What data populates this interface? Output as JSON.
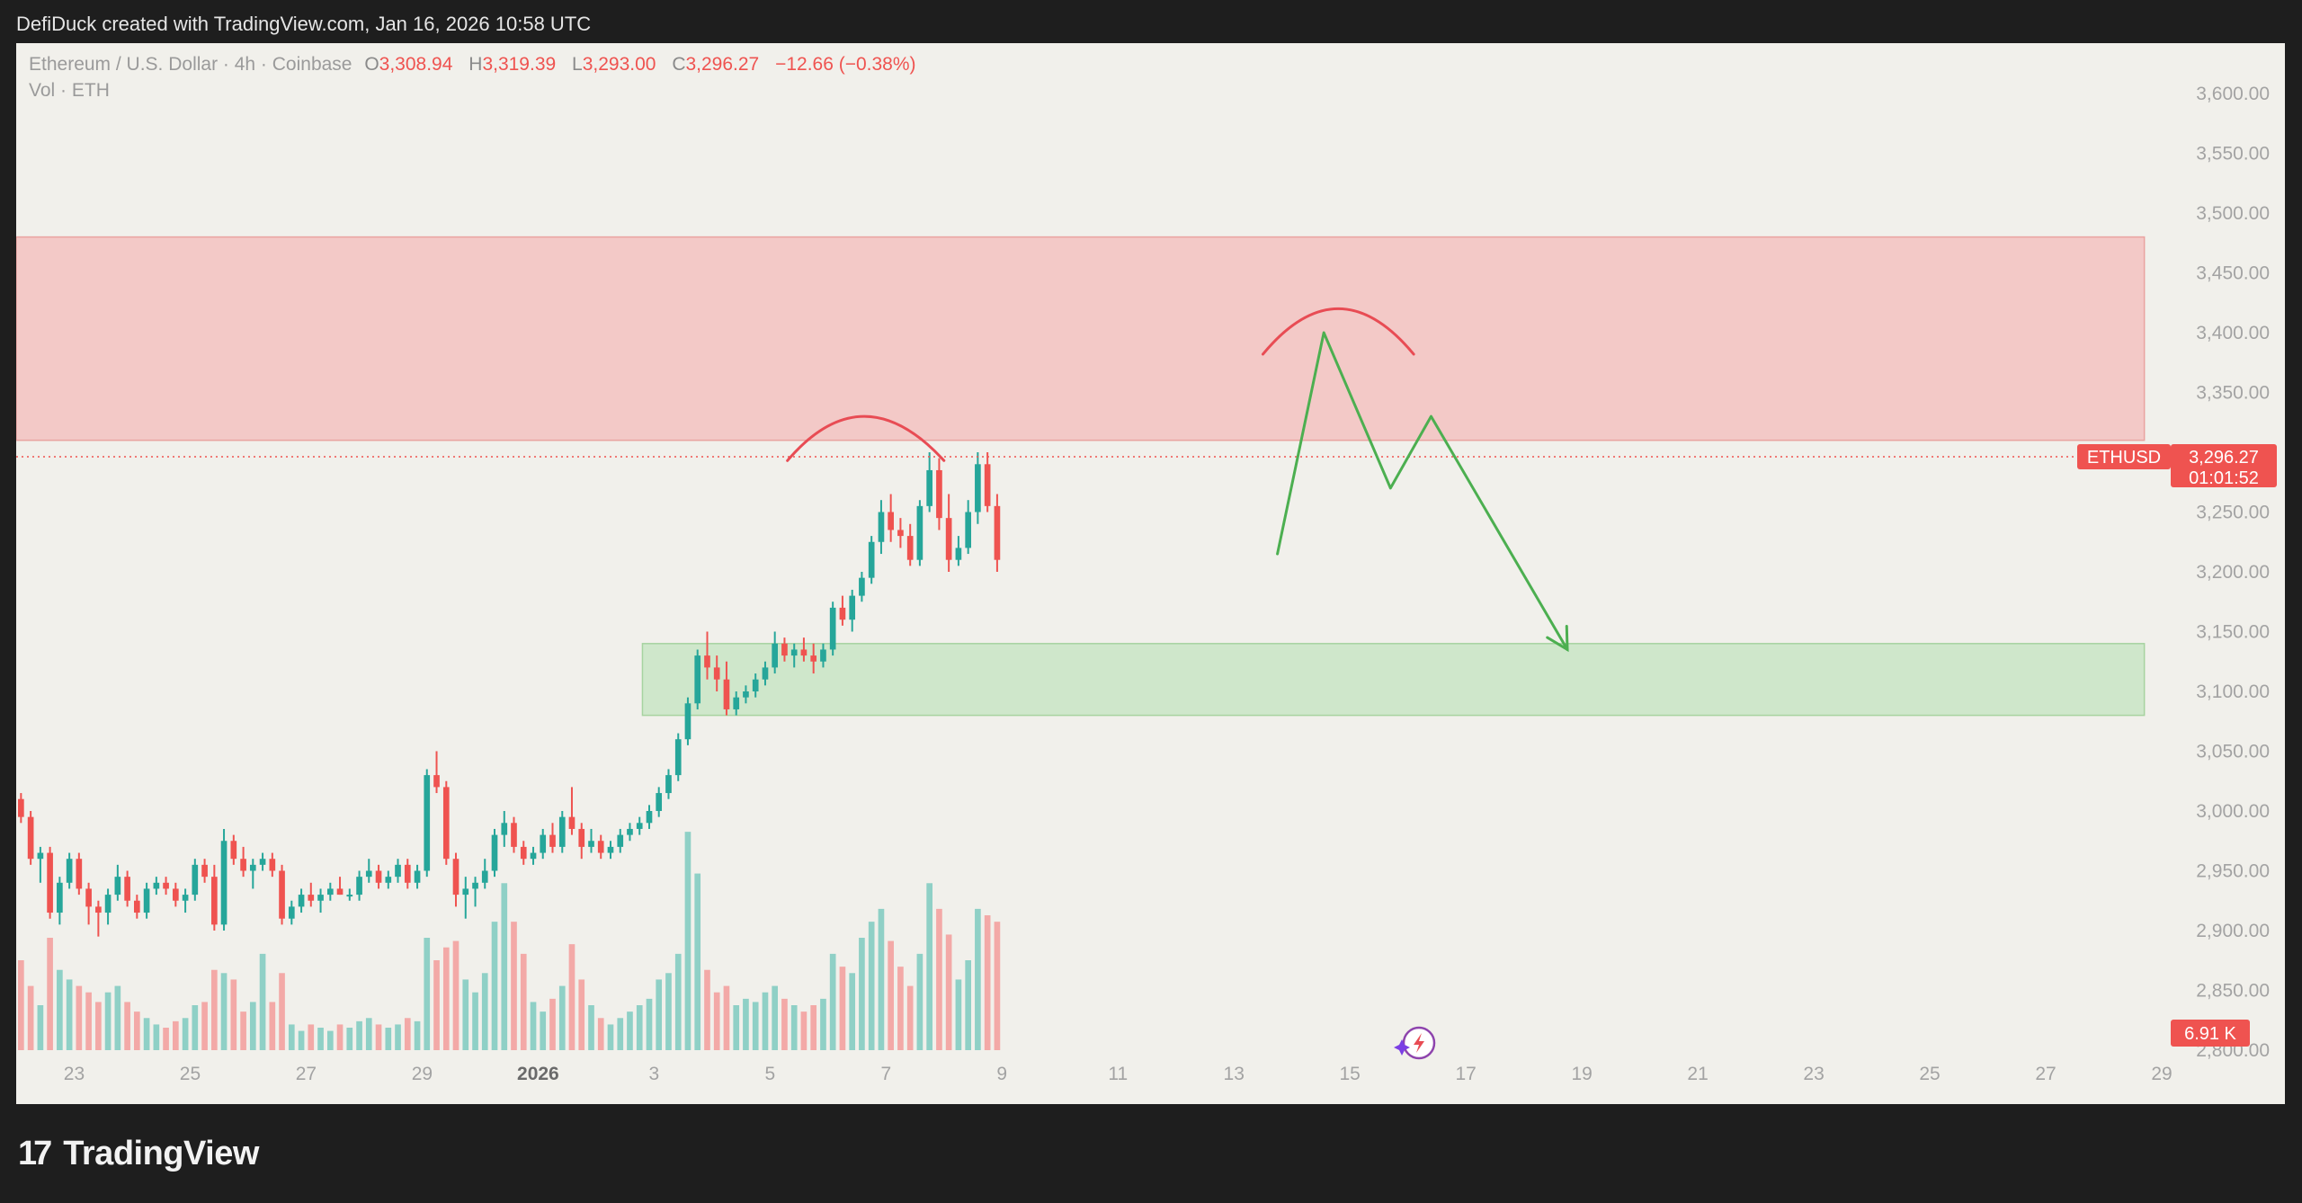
{
  "caption": "DefiDuck created with TradingView.com, Jan 16, 2026 10:58 UTC",
  "brand": {
    "logo": "17",
    "name": "TradingView"
  },
  "legend": {
    "symbol": "Ethereum / U.S. Dollar · 4h · Coinbase",
    "o_label": "O",
    "o_value": "3,308.94",
    "h_label": "H",
    "h_value": "3,319.39",
    "l_label": "L",
    "l_value": "3,293.00",
    "c_label": "C",
    "c_value": "3,296.27",
    "change": "−12.66 (−0.38%)",
    "volume_label": "Vol · ETH"
  },
  "colors": {
    "up": "#26a69a",
    "down": "#ef5350",
    "resistance_zone": "#f3c9c7",
    "support_zone": "#cfe7cb",
    "annotation_red": "#e84c54",
    "annotation_green": "#4caf50"
  },
  "icons": {
    "lightning_badge": "lightning-icon"
  },
  "chart_data": {
    "type": "candlestick",
    "symbol": "ETHUSD",
    "interval": "4h",
    "ylim": [
      2800,
      3600
    ],
    "y_ticks": [
      "2,800.00",
      "2,850.00",
      "2,900.00",
      "2,950.00",
      "3,000.00",
      "3,050.00",
      "3,100.00",
      "3,150.00",
      "3,200.00",
      "3,250.00",
      "3,300.00",
      "3,350.00",
      "3,400.00",
      "3,450.00",
      "3,500.00",
      "3,550.00",
      "3,600.00"
    ],
    "x_ticks": [
      {
        "day": 23.0,
        "label": "23"
      },
      {
        "day": 25.0,
        "label": "25"
      },
      {
        "day": 27.0,
        "label": "27"
      },
      {
        "day": 29.0,
        "label": "29"
      },
      {
        "day": 31.0,
        "label": "2026"
      },
      {
        "day": 33.0,
        "label": "3"
      },
      {
        "day": 35.0,
        "label": "5"
      },
      {
        "day": 37.0,
        "label": "7"
      },
      {
        "day": 39.0,
        "label": "9"
      },
      {
        "day": 41.0,
        "label": "11"
      },
      {
        "day": 43.0,
        "label": "13"
      },
      {
        "day": 45.0,
        "label": "15"
      },
      {
        "day": 47.0,
        "label": "17"
      },
      {
        "day": 49.0,
        "label": "19"
      },
      {
        "day": 51.0,
        "label": "21"
      },
      {
        "day": 53.0,
        "label": "23"
      },
      {
        "day": 55.0,
        "label": "25"
      },
      {
        "day": 57.0,
        "label": "27"
      },
      {
        "day": 59.0,
        "label": "29"
      }
    ],
    "last_price": {
      "ticker": "ETHUSD",
      "value": 3296.27,
      "label": "3,296.27",
      "countdown": "01:01:52"
    },
    "volume_badge": "6.91 K",
    "zones": [
      {
        "name": "resistance",
        "from_day": 22.0,
        "to_day": 58.7,
        "low": 3310,
        "high": 3480
      },
      {
        "name": "support",
        "from_day": 32.8,
        "to_day": 58.7,
        "low": 3080,
        "high": 3140
      }
    ],
    "annotations": {
      "arc_1": {
        "day_start": 35.3,
        "day_peak": 36.6,
        "day_end": 38.0,
        "low": 3293,
        "peak": 3330
      },
      "arc_2": {
        "day_start": 43.5,
        "day_peak": 44.8,
        "day_end": 46.1,
        "low": 3382,
        "peak": 3420
      },
      "projection_path": [
        {
          "day": 43.75,
          "price": 3215
        },
        {
          "day": 44.55,
          "price": 3400
        },
        {
          "day": 45.7,
          "price": 3270
        },
        {
          "day": 46.4,
          "price": 3330
        },
        {
          "day": 48.75,
          "price": 3135
        }
      ]
    },
    "candles": [
      [
        22.083,
        3010,
        3015,
        2990,
        2995,
        28
      ],
      [
        22.25,
        2995,
        3000,
        2955,
        2960,
        20
      ],
      [
        22.417,
        2960,
        2970,
        2940,
        2965,
        14
      ],
      [
        22.583,
        2965,
        2970,
        2910,
        2915,
        35
      ],
      [
        22.75,
        2915,
        2945,
        2905,
        2940,
        25
      ],
      [
        22.917,
        2940,
        2965,
        2935,
        2960,
        22
      ],
      [
        23.083,
        2960,
        2965,
        2930,
        2935,
        20
      ],
      [
        23.25,
        2935,
        2940,
        2905,
        2920,
        18
      ],
      [
        23.417,
        2920,
        2925,
        2895,
        2915,
        15
      ],
      [
        23.583,
        2915,
        2935,
        2905,
        2930,
        18
      ],
      [
        23.75,
        2930,
        2955,
        2925,
        2945,
        20
      ],
      [
        23.917,
        2945,
        2950,
        2920,
        2925,
        15
      ],
      [
        24.083,
        2925,
        2930,
        2910,
        2915,
        12
      ],
      [
        24.25,
        2915,
        2940,
        2910,
        2935,
        10
      ],
      [
        24.417,
        2935,
        2945,
        2930,
        2940,
        8
      ],
      [
        24.583,
        2940,
        2945,
        2930,
        2935,
        7
      ],
      [
        24.75,
        2935,
        2940,
        2920,
        2925,
        9
      ],
      [
        24.917,
        2925,
        2935,
        2915,
        2930,
        10
      ],
      [
        25.083,
        2930,
        2960,
        2925,
        2955,
        14
      ],
      [
        25.25,
        2955,
        2960,
        2940,
        2945,
        15
      ],
      [
        25.417,
        2945,
        2955,
        2900,
        2905,
        25
      ],
      [
        25.583,
        2905,
        2985,
        2900,
        2975,
        24
      ],
      [
        25.75,
        2975,
        2980,
        2955,
        2960,
        22
      ],
      [
        25.917,
        2960,
        2970,
        2945,
        2950,
        12
      ],
      [
        26.083,
        2950,
        2960,
        2935,
        2955,
        15
      ],
      [
        26.25,
        2955,
        2965,
        2950,
        2960,
        30
      ],
      [
        26.417,
        2960,
        2965,
        2945,
        2950,
        15
      ],
      [
        26.583,
        2950,
        2955,
        2905,
        2910,
        24
      ],
      [
        26.75,
        2910,
        2925,
        2905,
        2920,
        8
      ],
      [
        26.917,
        2920,
        2935,
        2915,
        2930,
        6
      ],
      [
        27.083,
        2930,
        2940,
        2920,
        2925,
        8
      ],
      [
        27.25,
        2925,
        2935,
        2915,
        2930,
        7
      ],
      [
        27.417,
        2930,
        2940,
        2925,
        2935,
        6
      ],
      [
        27.583,
        2935,
        2945,
        2930,
        2930,
        8
      ],
      [
        27.75,
        2930,
        2935,
        2925,
        2930,
        7
      ],
      [
        27.917,
        2930,
        2950,
        2925,
        2945,
        9
      ],
      [
        28.083,
        2945,
        2960,
        2940,
        2950,
        10
      ],
      [
        28.25,
        2950,
        2955,
        2935,
        2940,
        8
      ],
      [
        28.417,
        2940,
        2950,
        2935,
        2945,
        7
      ],
      [
        28.583,
        2945,
        2960,
        2940,
        2955,
        8
      ],
      [
        28.75,
        2955,
        2960,
        2935,
        2940,
        10
      ],
      [
        28.917,
        2940,
        2955,
        2935,
        2950,
        9
      ],
      [
        29.083,
        2950,
        3035,
        2945,
        3030,
        35
      ],
      [
        29.25,
        3030,
        3050,
        3015,
        3020,
        28
      ],
      [
        29.417,
        3020,
        3025,
        2955,
        2960,
        32
      ],
      [
        29.583,
        2960,
        2965,
        2920,
        2930,
        34
      ],
      [
        29.75,
        2930,
        2945,
        2910,
        2935,
        22
      ],
      [
        29.917,
        2935,
        2945,
        2920,
        2940,
        18
      ],
      [
        30.083,
        2940,
        2960,
        2935,
        2950,
        24
      ],
      [
        30.25,
        2950,
        2985,
        2945,
        2980,
        40
      ],
      [
        30.417,
        2980,
        3000,
        2970,
        2990,
        52
      ],
      [
        30.583,
        2990,
        2995,
        2965,
        2970,
        40
      ],
      [
        30.75,
        2970,
        2975,
        2955,
        2960,
        30
      ],
      [
        30.917,
        2960,
        2970,
        2955,
        2965,
        15
      ],
      [
        31.083,
        2965,
        2985,
        2960,
        2980,
        12
      ],
      [
        31.25,
        2980,
        2990,
        2965,
        2970,
        16
      ],
      [
        31.417,
        2970,
        3000,
        2965,
        2995,
        20
      ],
      [
        31.583,
        2995,
        3020,
        2980,
        2985,
        33
      ],
      [
        31.75,
        2985,
        2990,
        2960,
        2970,
        22
      ],
      [
        31.917,
        2970,
        2985,
        2965,
        2975,
        14
      ],
      [
        32.083,
        2975,
        2980,
        2960,
        2965,
        10
      ],
      [
        32.25,
        2965,
        2975,
        2960,
        2970,
        8
      ],
      [
        32.417,
        2970,
        2985,
        2965,
        2980,
        10
      ],
      [
        32.583,
        2980,
        2990,
        2975,
        2985,
        12
      ],
      [
        32.75,
        2985,
        2995,
        2980,
        2990,
        14
      ],
      [
        32.917,
        2990,
        3005,
        2985,
        3000,
        16
      ],
      [
        33.083,
        3000,
        3020,
        2995,
        3015,
        22
      ],
      [
        33.25,
        3015,
        3035,
        3010,
        3030,
        24
      ],
      [
        33.417,
        3030,
        3065,
        3025,
        3060,
        30
      ],
      [
        33.583,
        3060,
        3095,
        3055,
        3090,
        68
      ],
      [
        33.75,
        3090,
        3135,
        3085,
        3130,
        55
      ],
      [
        33.917,
        3130,
        3150,
        3110,
        3120,
        25
      ],
      [
        34.083,
        3120,
        3130,
        3100,
        3110,
        18
      ],
      [
        34.25,
        3110,
        3125,
        3080,
        3085,
        20
      ],
      [
        34.417,
        3085,
        3100,
        3080,
        3095,
        14
      ],
      [
        34.583,
        3095,
        3105,
        3090,
        3100,
        16
      ],
      [
        34.75,
        3100,
        3115,
        3095,
        3110,
        15
      ],
      [
        34.917,
        3110,
        3125,
        3105,
        3120,
        18
      ],
      [
        35.083,
        3120,
        3150,
        3115,
        3140,
        20
      ],
      [
        35.25,
        3140,
        3145,
        3125,
        3130,
        16
      ],
      [
        35.417,
        3130,
        3140,
        3120,
        3135,
        14
      ],
      [
        35.583,
        3135,
        3145,
        3125,
        3130,
        12
      ],
      [
        35.75,
        3130,
        3140,
        3115,
        3125,
        14
      ],
      [
        35.917,
        3125,
        3140,
        3120,
        3135,
        16
      ],
      [
        36.083,
        3135,
        3175,
        3130,
        3170,
        30
      ],
      [
        36.25,
        3170,
        3180,
        3155,
        3160,
        26
      ],
      [
        36.417,
        3160,
        3185,
        3150,
        3180,
        24
      ],
      [
        36.583,
        3180,
        3200,
        3175,
        3195,
        35
      ],
      [
        36.75,
        3195,
        3230,
        3190,
        3225,
        40
      ],
      [
        36.917,
        3225,
        3260,
        3215,
        3250,
        44
      ],
      [
        37.083,
        3250,
        3265,
        3225,
        3235,
        34
      ],
      [
        37.25,
        3235,
        3245,
        3220,
        3230,
        26
      ],
      [
        37.417,
        3230,
        3240,
        3205,
        3210,
        20
      ],
      [
        37.583,
        3210,
        3260,
        3205,
        3255,
        30
      ],
      [
        37.75,
        3255,
        3300,
        3250,
        3285,
        52
      ],
      [
        37.917,
        3285,
        3295,
        3235,
        3245,
        44
      ],
      [
        38.083,
        3245,
        3265,
        3200,
        3210,
        36
      ],
      [
        38.25,
        3210,
        3230,
        3205,
        3220,
        22
      ],
      [
        38.417,
        3220,
        3260,
        3215,
        3250,
        28
      ],
      [
        38.583,
        3250,
        3300,
        3240,
        3290,
        44
      ],
      [
        38.75,
        3290,
        3300,
        3250,
        3255,
        42
      ],
      [
        38.917,
        3255,
        3265,
        3200,
        3210,
        40
      ]
    ]
  }
}
